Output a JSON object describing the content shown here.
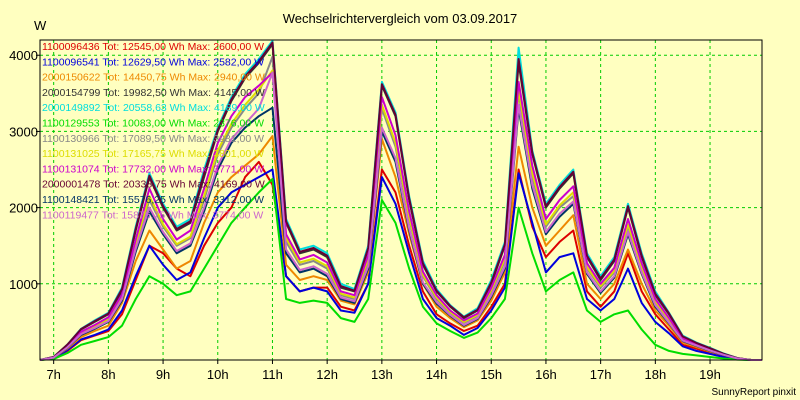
{
  "chart_data": {
    "type": "line",
    "title": "Wechselrichtervergleich vom 03.09.2017",
    "ylabel": "W",
    "xlabel": "",
    "footer": "SunnyReport pinxit",
    "ylim": [
      0,
      4200
    ],
    "xlim": [
      6.75,
      19.95
    ],
    "y_ticks": [
      1000,
      2000,
      3000,
      4000
    ],
    "x_ticks": [
      7,
      8,
      9,
      10,
      11,
      12,
      13,
      14,
      15,
      16,
      17,
      18,
      19
    ],
    "x_tick_labels": [
      "7h",
      "8h",
      "9h",
      "10h",
      "11h",
      "12h",
      "13h",
      "14h",
      "15h",
      "16h",
      "17h",
      "18h",
      "19h"
    ],
    "grid": true,
    "legend_position": "top-left",
    "background_color": "#ffffc0",
    "grid_color": "#00cc00",
    "x": [
      6.75,
      7.0,
      7.25,
      7.5,
      7.75,
      8.0,
      8.25,
      8.5,
      8.75,
      9.0,
      9.25,
      9.5,
      9.75,
      10.0,
      10.25,
      10.5,
      10.75,
      11.0,
      11.25,
      11.5,
      11.75,
      12.0,
      12.25,
      12.5,
      12.75,
      13.0,
      13.25,
      13.5,
      13.75,
      14.0,
      14.25,
      14.5,
      14.75,
      15.0,
      15.25,
      15.5,
      15.75,
      16.0,
      16.25,
      16.5,
      16.75,
      17.0,
      17.25,
      17.5,
      17.75,
      18.0,
      18.25,
      18.5,
      18.75,
      19.0,
      19.25,
      19.5,
      19.75,
      19.95
    ],
    "series": [
      {
        "name": "1100096436 Tot: 12545,00 Wh Max: 2600,00 W",
        "color": "#dd0000",
        "values": [
          0,
          20,
          120,
          260,
          320,
          380,
          600,
          1050,
          1500,
          1400,
          1200,
          1100,
          1500,
          1800,
          2000,
          2400,
          2600,
          2300,
          1100,
          900,
          950,
          950,
          700,
          650,
          1000,
          2500,
          2200,
          1500,
          900,
          600,
          480,
          380,
          450,
          700,
          1000,
          2500,
          1750,
          1350,
          1550,
          1700,
          900,
          700,
          900,
          1400,
          900,
          600,
          400,
          200,
          150,
          100,
          60,
          20,
          0,
          0
        ]
      },
      {
        "name": "1100096541 Tot: 12629,50 Wh Max: 2582,00 W",
        "color": "#0000dd",
        "values": [
          0,
          20,
          130,
          270,
          330,
          400,
          650,
          1100,
          1500,
          1250,
          1050,
          1150,
          1600,
          2000,
          2200,
          2300,
          2400,
          2500,
          1100,
          900,
          950,
          900,
          650,
          620,
          1000,
          2400,
          2050,
          1400,
          800,
          550,
          450,
          330,
          420,
          650,
          950,
          2450,
          1800,
          1150,
          1350,
          1400,
          800,
          650,
          800,
          1200,
          750,
          500,
          350,
          180,
          120,
          80,
          40,
          10,
          0,
          0
        ]
      },
      {
        "name": "2000150622 Tot: 14450,75 Wh Max: 2940,00 W",
        "color": "#ee8800",
        "values": [
          0,
          30,
          150,
          300,
          380,
          450,
          750,
          1300,
          1700,
          1450,
          1200,
          1300,
          1800,
          2200,
          2400,
          2550,
          2700,
          2940,
          1250,
          1050,
          1100,
          1050,
          780,
          730,
          1150,
          2900,
          2400,
          1650,
          1000,
          700,
          550,
          430,
          520,
          780,
          1150,
          2800,
          2000,
          1500,
          1700,
          1900,
          1000,
          800,
          1000,
          1450,
          1000,
          650,
          450,
          230,
          170,
          110,
          65,
          20,
          0,
          0
        ]
      },
      {
        "name": "2000154799 Tot: 19982,50 Wh Max: 4145,00 W",
        "color": "#333333",
        "values": [
          0,
          40,
          200,
          400,
          500,
          600,
          900,
          1700,
          2400,
          2000,
          1700,
          1800,
          2400,
          3000,
          3400,
          3700,
          3900,
          4145,
          1800,
          1400,
          1450,
          1350,
          950,
          900,
          1450,
          3600,
          3200,
          2100,
          1250,
          900,
          700,
          550,
          650,
          1000,
          1500,
          3900,
          2700,
          2000,
          2250,
          2450,
          1350,
          1050,
          1300,
          2000,
          1350,
          850,
          600,
          300,
          220,
          150,
          80,
          25,
          0,
          0
        ]
      },
      {
        "name": "2000149892 Tot: 20558,63 Wh Max: 4189,00 W",
        "color": "#00dddd",
        "values": [
          0,
          40,
          200,
          410,
          520,
          620,
          950,
          1750,
          2450,
          2050,
          1750,
          1850,
          2500,
          3050,
          3450,
          3750,
          3950,
          4189,
          1850,
          1450,
          1500,
          1400,
          1000,
          930,
          1500,
          3650,
          3250,
          2150,
          1300,
          930,
          720,
          570,
          680,
          1050,
          1550,
          4100,
          2750,
          2050,
          2300,
          2500,
          1400,
          1100,
          1350,
          2050,
          1400,
          900,
          620,
          320,
          230,
          160,
          85,
          25,
          0,
          0
        ]
      },
      {
        "name": "1100129553 Tot: 10083,00 Wh Max: 2376,00 W",
        "color": "#00dd00",
        "values": [
          0,
          15,
          90,
          200,
          250,
          300,
          450,
          800,
          1100,
          1000,
          850,
          900,
          1200,
          1500,
          1800,
          2000,
          2200,
          2376,
          800,
          750,
          780,
          750,
          550,
          500,
          800,
          2100,
          1800,
          1200,
          700,
          480,
          380,
          290,
          360,
          550,
          800,
          2000,
          1400,
          900,
          1050,
          1150,
          650,
          500,
          600,
          650,
          400,
          200,
          120,
          80,
          60,
          40,
          20,
          5,
          0,
          0
        ]
      },
      {
        "name": "1100130966 Tot: 17089,50 Wh Max: 3981,00 W",
        "color": "#888888",
        "values": [
          0,
          35,
          170,
          350,
          440,
          530,
          820,
          1500,
          2100,
          1750,
          1500,
          1600,
          2100,
          2700,
          3050,
          3300,
          3500,
          3981,
          1550,
          1250,
          1300,
          1200,
          850,
          800,
          1300,
          3300,
          2800,
          1850,
          1100,
          800,
          620,
          490,
          580,
          900,
          1300,
          3500,
          2400,
          1750,
          2000,
          2150,
          1200,
          950,
          1150,
          1750,
          1200,
          750,
          520,
          270,
          200,
          130,
          70,
          22,
          0,
          0
        ]
      },
      {
        "name": "1100131025 Tot: 17165,75 Wh Max: 3801,00 W",
        "color": "#dddd00",
        "values": [
          0,
          35,
          175,
          355,
          445,
          535,
          830,
          1520,
          2150,
          1780,
          1520,
          1620,
          2150,
          2750,
          3100,
          3350,
          3550,
          3801,
          1600,
          1280,
          1330,
          1230,
          870,
          820,
          1330,
          3350,
          2850,
          1880,
          1120,
          820,
          630,
          500,
          590,
          920,
          1330,
          3550,
          2450,
          1780,
          2030,
          2200,
          1220,
          970,
          1170,
          1780,
          1220,
          770,
          530,
          275,
          205,
          135,
          72,
          22,
          0,
          0
        ]
      },
      {
        "name": "1100131074 Tot: 17732,00 Wh Max: 3771,00 W",
        "color": "#cc00cc",
        "values": [
          0,
          38,
          185,
          370,
          460,
          560,
          860,
          1580,
          2250,
          1850,
          1580,
          1700,
          2250,
          2850,
          3200,
          3450,
          3600,
          3771,
          1650,
          1320,
          1380,
          1280,
          900,
          850,
          1380,
          3450,
          2950,
          1950,
          1160,
          850,
          650,
          520,
          610,
          950,
          1380,
          3650,
          2550,
          1850,
          2100,
          2280,
          1270,
          1000,
          1210,
          1850,
          1270,
          800,
          550,
          285,
          210,
          140,
          75,
          23,
          0,
          0
        ]
      },
      {
        "name": "2000001478 Tot: 20338,75 Wh Max: 4169,00 W",
        "color": "#660033",
        "values": [
          0,
          40,
          200,
          405,
          510,
          610,
          930,
          1720,
          2420,
          2020,
          1720,
          1820,
          2450,
          3020,
          3420,
          3720,
          3920,
          4169,
          1820,
          1420,
          1470,
          1370,
          970,
          910,
          1470,
          3620,
          3220,
          2120,
          1270,
          910,
          710,
          560,
          660,
          1020,
          1520,
          3950,
          2720,
          2020,
          2270,
          2470,
          1370,
          1070,
          1320,
          2020,
          1370,
          870,
          610,
          310,
          225,
          155,
          82,
          25,
          0,
          0
        ]
      },
      {
        "name": "1100148421 Tot: 15576,25 Wh Max: 3312,00 W",
        "color": "#003366",
        "values": [
          0,
          30,
          160,
          330,
          410,
          500,
          780,
          1420,
          1950,
          1650,
          1400,
          1500,
          1950,
          2500,
          2850,
          3050,
          3200,
          3312,
          1400,
          1150,
          1200,
          1100,
          800,
          750,
          1200,
          3000,
          2600,
          1700,
          1000,
          740,
          580,
          450,
          540,
          830,
          1200,
          3300,
          2250,
          1650,
          1880,
          2050,
          1130,
          880,
          1080,
          1650,
          1130,
          700,
          480,
          250,
          185,
          120,
          65,
          20,
          0,
          0
        ]
      },
      {
        "name": "1100119477 Tot: 15876,75 Wh Max: 3774,00 W",
        "color": "#cc66cc",
        "values": [
          0,
          32,
          165,
          340,
          420,
          510,
          800,
          1460,
          2000,
          1680,
          1430,
          1530,
          2000,
          2550,
          2900,
          3100,
          3300,
          3774,
          1450,
          1180,
          1230,
          1130,
          820,
          770,
          1230,
          3050,
          2650,
          1730,
          1020,
          760,
          590,
          460,
          550,
          850,
          1230,
          3350,
          2300,
          1680,
          1920,
          2080,
          1150,
          900,
          1100,
          1680,
          1150,
          720,
          490,
          255,
          190,
          125,
          68,
          20,
          0,
          0
        ]
      }
    ]
  }
}
